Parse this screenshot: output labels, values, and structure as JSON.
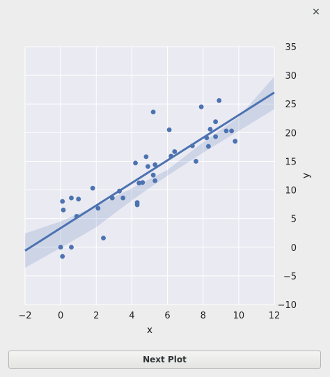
{
  "window": {
    "close_glyph": "×"
  },
  "next_button_label": "Next Plot",
  "colors": {
    "plot_bg": "#eaeaf2",
    "grid": "#ffffff",
    "series": "#4c72b0",
    "ci_band": "#4c72b0"
  },
  "chart_data": {
    "type": "scatter",
    "xlabel": "x",
    "ylabel": "y",
    "xlim": [
      -2,
      12
    ],
    "ylim": [
      -10,
      35
    ],
    "xticks": [
      -2,
      0,
      2,
      4,
      6,
      8,
      10,
      12
    ],
    "yticks": [
      -10,
      -5,
      0,
      5,
      10,
      15,
      20,
      25,
      30,
      35
    ],
    "y_axis_position": "right",
    "grid": true,
    "points": [
      [
        0.0,
        0.0
      ],
      [
        0.1,
        -1.6
      ],
      [
        0.6,
        0.0
      ],
      [
        0.1,
        8.0
      ],
      [
        0.15,
        6.5
      ],
      [
        0.6,
        8.6
      ],
      [
        1.0,
        8.4
      ],
      [
        0.9,
        5.4
      ],
      [
        1.8,
        10.3
      ],
      [
        2.1,
        6.8
      ],
      [
        2.4,
        1.6
      ],
      [
        2.9,
        8.6
      ],
      [
        3.3,
        9.8
      ],
      [
        3.5,
        8.6
      ],
      [
        4.2,
        14.7
      ],
      [
        4.3,
        7.8
      ],
      [
        4.3,
        7.4
      ],
      [
        4.4,
        11.2
      ],
      [
        4.6,
        11.3
      ],
      [
        4.8,
        15.8
      ],
      [
        4.9,
        14.1
      ],
      [
        5.2,
        12.6
      ],
      [
        5.3,
        11.6
      ],
      [
        5.3,
        14.4
      ],
      [
        5.2,
        23.6
      ],
      [
        6.1,
        20.5
      ],
      [
        6.2,
        15.9
      ],
      [
        6.4,
        16.7
      ],
      [
        7.4,
        17.7
      ],
      [
        7.6,
        15.0
      ],
      [
        7.9,
        24.5
      ],
      [
        8.2,
        19.1
      ],
      [
        8.3,
        17.6
      ],
      [
        8.4,
        20.6
      ],
      [
        8.7,
        21.9
      ],
      [
        8.7,
        19.3
      ],
      [
        8.9,
        25.6
      ],
      [
        9.3,
        20.3
      ],
      [
        9.6,
        20.3
      ],
      [
        9.8,
        18.5
      ]
    ],
    "regression": {
      "x": [
        -2,
        12
      ],
      "y": [
        -0.6,
        27.0
      ]
    },
    "ci_band": {
      "x": [
        -2,
        0,
        2,
        4,
        6,
        8,
        10,
        12
      ],
      "lower": [
        -3.6,
        -0.1,
        3.5,
        8.2,
        12.5,
        16.5,
        20.3,
        24.1
      ],
      "upper": [
        2.4,
        4.5,
        7.2,
        10.3,
        13.5,
        18.3,
        22.7,
        29.8
      ]
    }
  }
}
